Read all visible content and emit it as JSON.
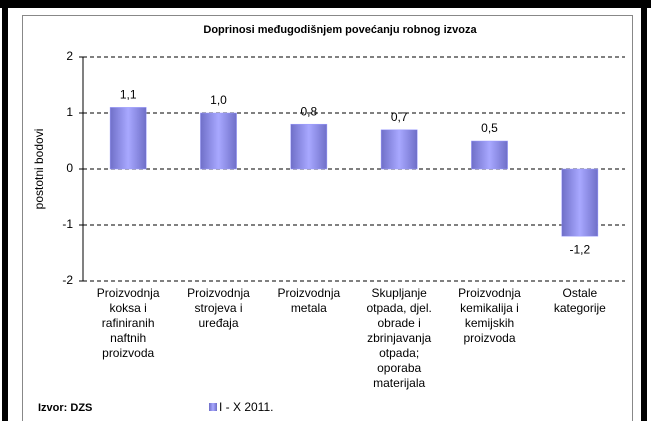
{
  "chart_data": {
    "type": "bar",
    "title": "Doprinosi međugodišnjem povećanju robnog izvoza",
    "y_label": "postotni bodovi",
    "source": "Izvor: DZS",
    "categories": [
      "Proizvodnja\nkoksa i\nrafiniranih\nnaftnih\nproizvoda",
      "Proizvodnja\nstrojeva i\nuređaja",
      "Proizvodnja\nmetala",
      "Skupljanje\notpada, djel.\nobrade i\nzbrinjavanja\notpada;\noporaba\nmaterijala",
      "Proizvodnja\nkemikalija i\nkemijskih\nproizvoda",
      "Ostale\nkategorije"
    ],
    "series": [
      {
        "name": "I - X 2011.",
        "color": "#9999ff",
        "values": [
          1.1,
          1.0,
          0.8,
          0.7,
          0.5,
          -1.2
        ],
        "value_labels": [
          "1,1",
          "1,0",
          "0,8",
          "0,7",
          "0,5",
          "-1,2"
        ]
      }
    ],
    "ylim": [
      -2,
      2
    ],
    "yticks": [
      -2,
      -1,
      0,
      1,
      2
    ],
    "grid": true
  }
}
